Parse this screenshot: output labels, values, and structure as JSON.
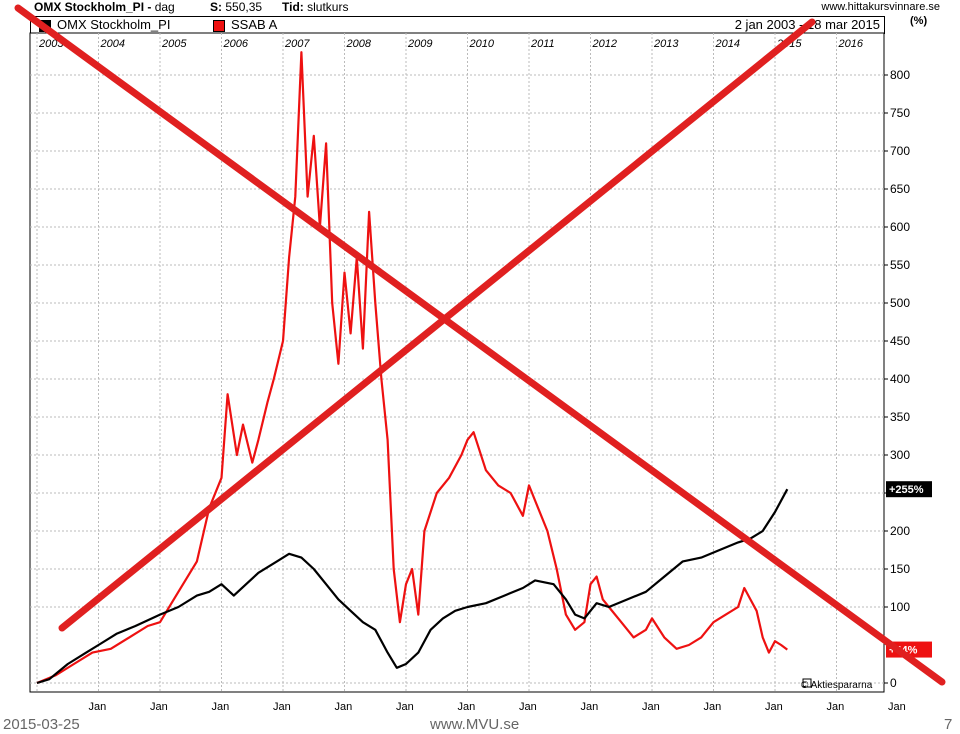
{
  "header": {
    "title": "OMX Stockholm_PI",
    "period": "dag",
    "s_label": "S:",
    "s_value": "550,35",
    "tid_label": "Tid:",
    "tid_value": "slutkurs",
    "site": "www.hittakursvinnare.se"
  },
  "legend": {
    "series1": "OMX Stockholm_PI",
    "series2": "SSAB A",
    "date_range": "2 jan 2003 - 18 mar 2015",
    "unit": "(%)"
  },
  "colors": {
    "omx": "#000000",
    "ssab": "#ee1111",
    "cross": "#e02020",
    "grid": "#bbbbbb"
  },
  "chart_data": {
    "type": "line",
    "title": "",
    "xlabel": "",
    "ylabel": "(%)",
    "ylim": [
      0,
      830
    ],
    "yticks": [
      0,
      100,
      150,
      200,
      250,
      300,
      350,
      400,
      450,
      500,
      550,
      600,
      650,
      700,
      750,
      800
    ],
    "top_years": [
      "2003",
      "2004",
      "2005",
      "2006",
      "2007",
      "2008",
      "2009",
      "2010",
      "2011",
      "2012",
      "2013",
      "2014",
      "2015",
      "2016"
    ],
    "bottom_months": [
      "Jan",
      "Jan",
      "Jan",
      "Jan",
      "Jan",
      "Jan",
      "Jan",
      "Jan",
      "Jan",
      "Jan",
      "Jan",
      "Jan",
      "Jan",
      "Jan"
    ],
    "grid": true,
    "end_labels": {
      "omx": "+255%",
      "ssab": "+44%"
    },
    "watermark": "© Aktiespararna",
    "series": [
      {
        "name": "OMX Stockholm_PI",
        "x": [
          2003.0,
          2003.2,
          2003.5,
          2003.8,
          2004.0,
          2004.3,
          2004.6,
          2005.0,
          2005.3,
          2005.6,
          2005.8,
          2006.0,
          2006.2,
          2006.4,
          2006.6,
          2006.9,
          2007.1,
          2007.3,
          2007.5,
          2007.7,
          2007.9,
          2008.1,
          2008.3,
          2008.5,
          2008.7,
          2008.85,
          2009.0,
          2009.2,
          2009.4,
          2009.6,
          2009.8,
          2010.0,
          2010.3,
          2010.6,
          2010.9,
          2011.1,
          2011.4,
          2011.6,
          2011.75,
          2011.9,
          2012.1,
          2012.3,
          2012.6,
          2012.9,
          2013.2,
          2013.5,
          2013.8,
          2014.1,
          2014.4,
          2014.6,
          2014.8,
          2015.0,
          2015.2
        ],
        "values": [
          0,
          5,
          25,
          40,
          50,
          65,
          75,
          90,
          100,
          115,
          120,
          130,
          115,
          130,
          145,
          160,
          170,
          165,
          150,
          130,
          110,
          95,
          80,
          70,
          40,
          20,
          25,
          40,
          70,
          85,
          95,
          100,
          105,
          115,
          125,
          135,
          130,
          110,
          90,
          85,
          105,
          100,
          110,
          120,
          140,
          160,
          165,
          175,
          185,
          190,
          200,
          225,
          255
        ]
      },
      {
        "name": "SSAB A",
        "x": [
          2003.0,
          2003.3,
          2003.6,
          2003.9,
          2004.2,
          2004.5,
          2004.8,
          2005.0,
          2005.3,
          2005.6,
          2005.8,
          2006.0,
          2006.1,
          2006.25,
          2006.35,
          2006.5,
          2006.6,
          2006.75,
          2006.85,
          2007.0,
          2007.1,
          2007.2,
          2007.3,
          2007.4,
          2007.5,
          2007.6,
          2007.7,
          2007.8,
          2007.9,
          2008.0,
          2008.1,
          2008.2,
          2008.3,
          2008.4,
          2008.5,
          2008.6,
          2008.7,
          2008.8,
          2008.9,
          2009.0,
          2009.1,
          2009.2,
          2009.3,
          2009.5,
          2009.7,
          2009.9,
          2010.0,
          2010.1,
          2010.3,
          2010.5,
          2010.7,
          2010.9,
          2011.0,
          2011.1,
          2011.3,
          2011.45,
          2011.6,
          2011.75,
          2011.9,
          2012.0,
          2012.1,
          2012.2,
          2012.3,
          2012.5,
          2012.7,
          2012.9,
          2013.0,
          2013.2,
          2013.4,
          2013.6,
          2013.8,
          2014.0,
          2014.2,
          2014.4,
          2014.5,
          2014.6,
          2014.7,
          2014.8,
          2014.9,
          2015.0,
          2015.1,
          2015.2
        ],
        "values": [
          0,
          10,
          25,
          40,
          45,
          60,
          75,
          80,
          120,
          160,
          230,
          270,
          380,
          300,
          340,
          290,
          320,
          370,
          400,
          450,
          560,
          640,
          830,
          640,
          720,
          600,
          710,
          500,
          420,
          540,
          460,
          560,
          440,
          620,
          500,
          400,
          320,
          150,
          80,
          130,
          150,
          90,
          200,
          250,
          270,
          300,
          320,
          330,
          280,
          260,
          250,
          220,
          260,
          240,
          200,
          150,
          90,
          70,
          80,
          130,
          140,
          110,
          100,
          80,
          60,
          70,
          85,
          60,
          45,
          50,
          60,
          80,
          90,
          100,
          125,
          110,
          95,
          60,
          40,
          55,
          50,
          44
        ]
      }
    ]
  },
  "footer": {
    "date": "2015-03-25",
    "site": "www.MVU.se",
    "page": "7"
  }
}
